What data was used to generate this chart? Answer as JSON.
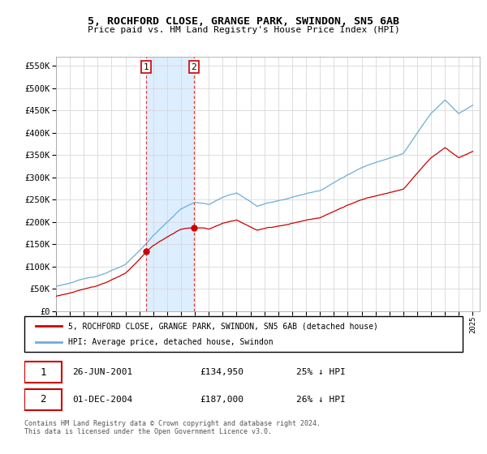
{
  "title": "5, ROCHFORD CLOSE, GRANGE PARK, SWINDON, SN5 6AB",
  "subtitle": "Price paid vs. HM Land Registry's House Price Index (HPI)",
  "legend_line1": "5, ROCHFORD CLOSE, GRANGE PARK, SWINDON, SN5 6AB (detached house)",
  "legend_line2": "HPI: Average price, detached house, Swindon",
  "sale1_date": "26-JUN-2001",
  "sale1_price": "£134,950",
  "sale1_hpi": "25% ↓ HPI",
  "sale2_date": "01-DEC-2004",
  "sale2_price": "£187,000",
  "sale2_hpi": "26% ↓ HPI",
  "footnote": "Contains HM Land Registry data © Crown copyright and database right 2024.\nThis data is licensed under the Open Government Licence v3.0.",
  "hpi_color": "#6baed6",
  "property_color": "#cc0000",
  "highlight_color": "#ddeeff",
  "sale1_year": 2001.5,
  "sale2_year": 2004.92,
  "ylim": [
    0,
    570000
  ],
  "yticks": [
    0,
    50000,
    100000,
    150000,
    200000,
    250000,
    300000,
    350000,
    400000,
    450000,
    500000,
    550000
  ],
  "xlim_start": 1995,
  "xlim_end": 2025.5
}
